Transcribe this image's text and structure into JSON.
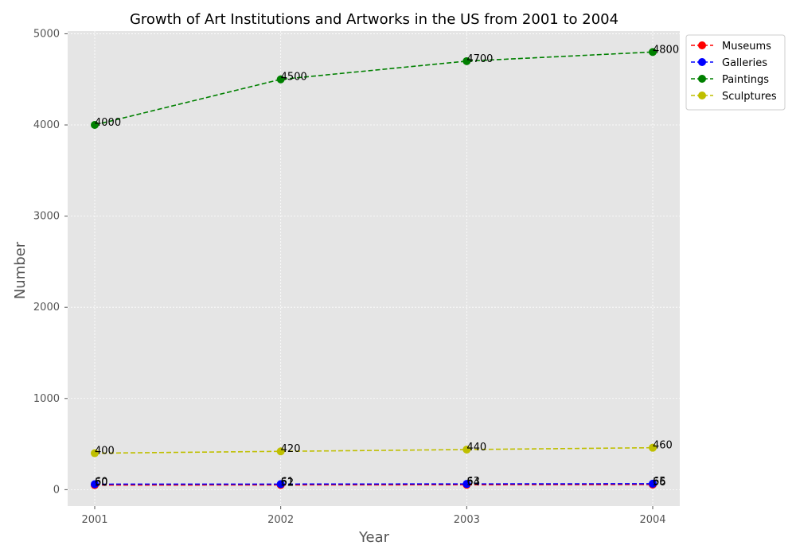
{
  "chart_data": {
    "type": "line",
    "title": "Growth of Art Institutions and Artworks in the US from 2001 to 2004",
    "xlabel": "Year",
    "ylabel": "Number",
    "x": [
      "2001",
      "2002",
      "2003",
      "2004"
    ],
    "ylim": [
      -180,
      5030
    ],
    "yticks": [
      0,
      1000,
      2000,
      3000,
      4000,
      5000
    ],
    "grid": true,
    "legend_position": "outside-top-right",
    "series": [
      {
        "name": "Museums",
        "values": [
          50,
          52,
          54,
          56
        ],
        "color": "#ff0000"
      },
      {
        "name": "Galleries",
        "values": [
          60,
          61,
          63,
          65
        ],
        "color": "#0000ff"
      },
      {
        "name": "Paintings",
        "values": [
          4000,
          4500,
          4700,
          4800
        ],
        "color": "#008000"
      },
      {
        "name": "Sculptures",
        "values": [
          400,
          420,
          440,
          460
        ],
        "color": "#bfbf00"
      }
    ]
  }
}
